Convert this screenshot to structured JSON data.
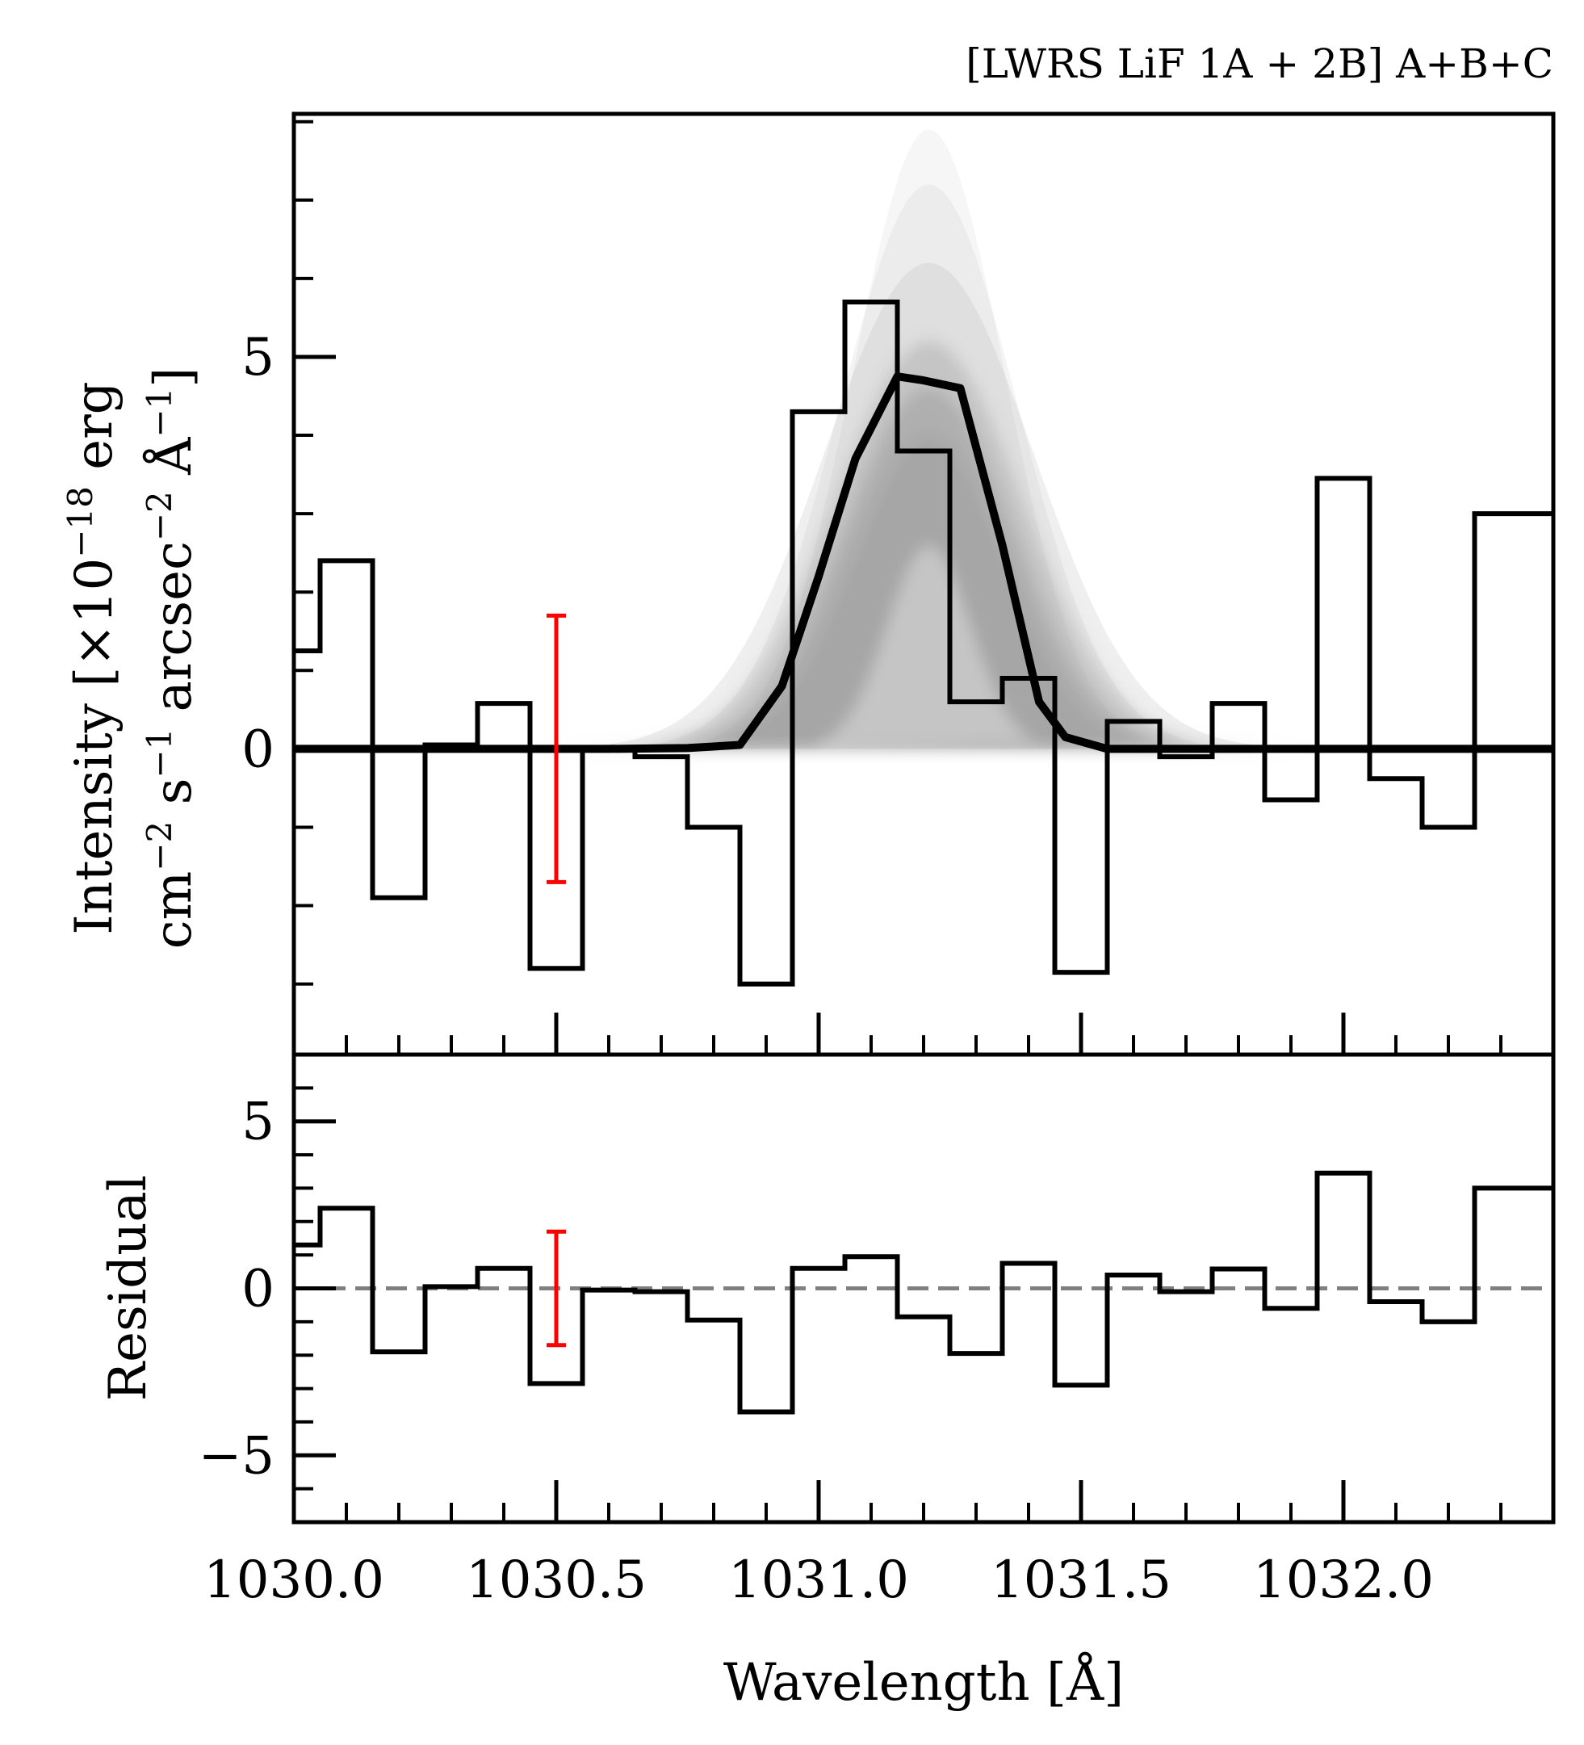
{
  "chart_data": [
    {
      "type": "line",
      "title": "[LWRS LiF 1A + 2B] A+B+C",
      "ylabel_lines": [
        "Intensity [×10^−18 erg",
        "cm^−2 s^−1 arcsec^−2 Å^−1]"
      ],
      "ylabel_plain": "Intensity [×10−18 erg cm−2 s−1 arcsec−2 Å−1]",
      "xlabel": "",
      "xlim": [
        1030.0,
        1032.4
      ],
      "ylim": [
        -3.9,
        8.1
      ],
      "y_ticks": [
        0,
        5
      ],
      "y_tick_labels": [
        "0",
        "5"
      ],
      "series": [
        {
          "name": "data",
          "style": "step",
          "bin_edges": [
            1030.0,
            1030.05,
            1030.15,
            1030.25,
            1030.35,
            1030.45,
            1030.55,
            1030.65,
            1030.75,
            1030.85,
            1030.95,
            1031.05,
            1031.15,
            1031.25,
            1031.35,
            1031.45,
            1031.55,
            1031.65,
            1031.75,
            1031.85,
            1031.95,
            1032.05,
            1032.15,
            1032.25,
            1032.35,
            1032.4
          ],
          "values": [
            1.25,
            2.4,
            -1.9,
            0.05,
            0.58,
            -2.8,
            0.0,
            -0.1,
            -1.0,
            -3.0,
            4.3,
            5.7,
            3.8,
            0.6,
            0.9,
            -2.85,
            0.35,
            -0.1,
            0.58,
            -0.65,
            3.45,
            -0.38,
            -1.0,
            3.0,
            3.0
          ]
        },
        {
          "name": "model",
          "style": "line",
          "x": [
            1030.0,
            1030.2,
            1030.4,
            1030.6,
            1030.75,
            1030.85,
            1030.93,
            1031.0,
            1031.07,
            1031.15,
            1031.2,
            1031.27,
            1031.35,
            1031.42,
            1031.47,
            1031.55,
            1031.7,
            1032.0,
            1032.4
          ],
          "y": [
            0,
            0,
            0,
            0,
            0.01,
            0.05,
            0.8,
            2.2,
            3.7,
            4.75,
            4.7,
            4.6,
            2.6,
            0.6,
            0.15,
            0.0,
            0,
            0,
            0
          ]
        }
      ],
      "annotations": [
        {
          "type": "errorbar",
          "color": "#ff0000",
          "x": 1030.5,
          "y_low": -1.7,
          "y_high": 1.7
        }
      ]
    },
    {
      "type": "line",
      "xlabel": "Wavelength [Å]",
      "ylabel": "Residual",
      "xlim": [
        1030.0,
        1032.4
      ],
      "ylim": [
        -7,
        7
      ],
      "x_ticks": [
        1030.0,
        1030.5,
        1031.0,
        1031.5,
        1032.0
      ],
      "x_tick_labels": [
        "1030.0",
        "1030.5",
        "1031.0",
        "1031.5",
        "1032.0"
      ],
      "y_ticks": [
        -5,
        0,
        5
      ],
      "y_tick_labels": [
        "−5",
        "0",
        "5"
      ],
      "series": [
        {
          "name": "residual",
          "style": "step",
          "bin_edges": [
            1030.0,
            1030.05,
            1030.15,
            1030.25,
            1030.35,
            1030.45,
            1030.55,
            1030.65,
            1030.75,
            1030.85,
            1030.95,
            1031.05,
            1031.15,
            1031.25,
            1031.35,
            1031.45,
            1031.55,
            1031.65,
            1031.75,
            1031.85,
            1031.95,
            1032.05,
            1032.15,
            1032.25,
            1032.35,
            1032.4
          ],
          "values": [
            1.3,
            2.4,
            -1.9,
            0.05,
            0.6,
            -2.85,
            -0.05,
            -0.1,
            -0.95,
            -3.7,
            0.6,
            0.95,
            -0.85,
            -1.95,
            0.75,
            -2.9,
            0.4,
            -0.1,
            0.58,
            -0.6,
            3.45,
            -0.4,
            -1.0,
            3.0,
            3.0
          ]
        }
      ],
      "reference_line": {
        "y": 0,
        "style": "dashed",
        "color": "#808080"
      },
      "annotations": [
        {
          "type": "errorbar",
          "color": "#ff0000",
          "x": 1030.5,
          "y_low": -1.7,
          "y_high": 1.7
        }
      ]
    }
  ],
  "colors": {
    "data_line": "#000000",
    "model_line": "#000000",
    "samples": "#a6a6a6",
    "error_bar": "#ff0000",
    "zero_line": "#808080"
  }
}
